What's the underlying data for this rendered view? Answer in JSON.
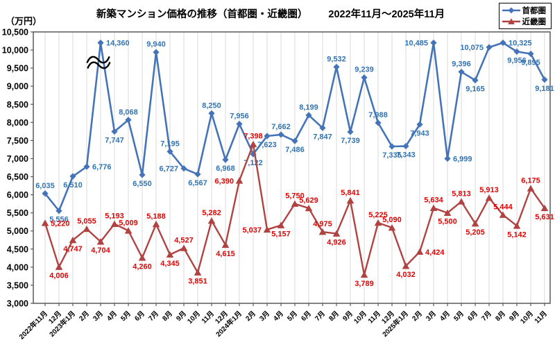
{
  "header": {
    "unit_label": "（万円）",
    "title_main": "新築マンション価格の推移（首都圏・近畿圏）",
    "title_period": "2022年11月～2025年11月"
  },
  "chart_data": {
    "type": "line",
    "title": "新築マンション価格の推移（首都圏・近畿圏） 2022年11月～2025年11月",
    "ylabel": "（万円）",
    "ylim": [
      3000,
      10500
    ],
    "ytick_step": 500,
    "grid": "vertical-only",
    "legend_position": "top-right",
    "categories": [
      "2022年11月",
      "12月",
      "2023年1月",
      "2月",
      "3月",
      "4月",
      "5月",
      "6月",
      "7月",
      "8月",
      "9月",
      "10月",
      "11月",
      "12月",
      "2024年1月",
      "2月",
      "3月",
      "4月",
      "5月",
      "6月",
      "7月",
      "8月",
      "9月",
      "10月",
      "11月",
      "12月",
      "2025年1月",
      "2月",
      "3月",
      "4月",
      "5月",
      "6月",
      "7月",
      "8月",
      "9月",
      "10月",
      "11月"
    ],
    "series": [
      {
        "name": "首都圏",
        "marker": "diamond",
        "color": "#4474b7",
        "label_color": "#2e74b5",
        "values": [
          6035,
          5556,
          6510,
          6776,
          14360,
          7747,
          8068,
          6550,
          9940,
          7195,
          6727,
          6567,
          8250,
          6968,
          7956,
          7122,
          7623,
          7662,
          7486,
          8199,
          7847,
          9532,
          7739,
          9239,
          7988,
          7335,
          7343,
          7943,
          10485,
          6999,
          9396,
          9165,
          10075,
          10325,
          9956,
          9895,
          9181
        ],
        "label_pos": [
          "above",
          "below",
          "below",
          "right",
          "right",
          "below",
          "above",
          "below",
          "above",
          "above",
          "left",
          "below",
          "above",
          "below",
          "above",
          "below",
          "below",
          "above",
          "below",
          "above",
          "below",
          "above",
          "below",
          "above",
          "above",
          "below",
          "below",
          "below",
          "left",
          "right",
          "above",
          "below",
          "left",
          "right",
          "below",
          "below",
          "below"
        ]
      },
      {
        "name": "近畿圏",
        "marker": "triangle",
        "color": "#b04341",
        "label_color": "#e60000",
        "values": [
          5220,
          4006,
          4747,
          5055,
          4704,
          5193,
          5009,
          4260,
          5188,
          4345,
          4527,
          3851,
          5282,
          4615,
          6390,
          7398,
          5037,
          5157,
          5750,
          5629,
          4975,
          4926,
          5841,
          3789,
          5225,
          5090,
          4032,
          4424,
          5634,
          5500,
          5813,
          5205,
          5913,
          5444,
          5142,
          6175,
          5631
        ],
        "label_pos": [
          "right",
          "below",
          "below",
          "above",
          "below",
          "above",
          "above",
          "below",
          "above",
          "below",
          "above",
          "below",
          "above",
          "below",
          "left",
          "above",
          "left",
          "below",
          "above",
          "above",
          "above",
          "below",
          "above",
          "below",
          "above",
          "above",
          "below",
          "right",
          "above",
          "below",
          "above",
          "below",
          "above",
          "above",
          "below",
          "above",
          "below"
        ]
      }
    ],
    "axis_break": {
      "series": "首都圏",
      "category": "2023年3月",
      "actual_value": 14360,
      "plotted_at": 10200,
      "mark": "double-wavy-line"
    }
  }
}
